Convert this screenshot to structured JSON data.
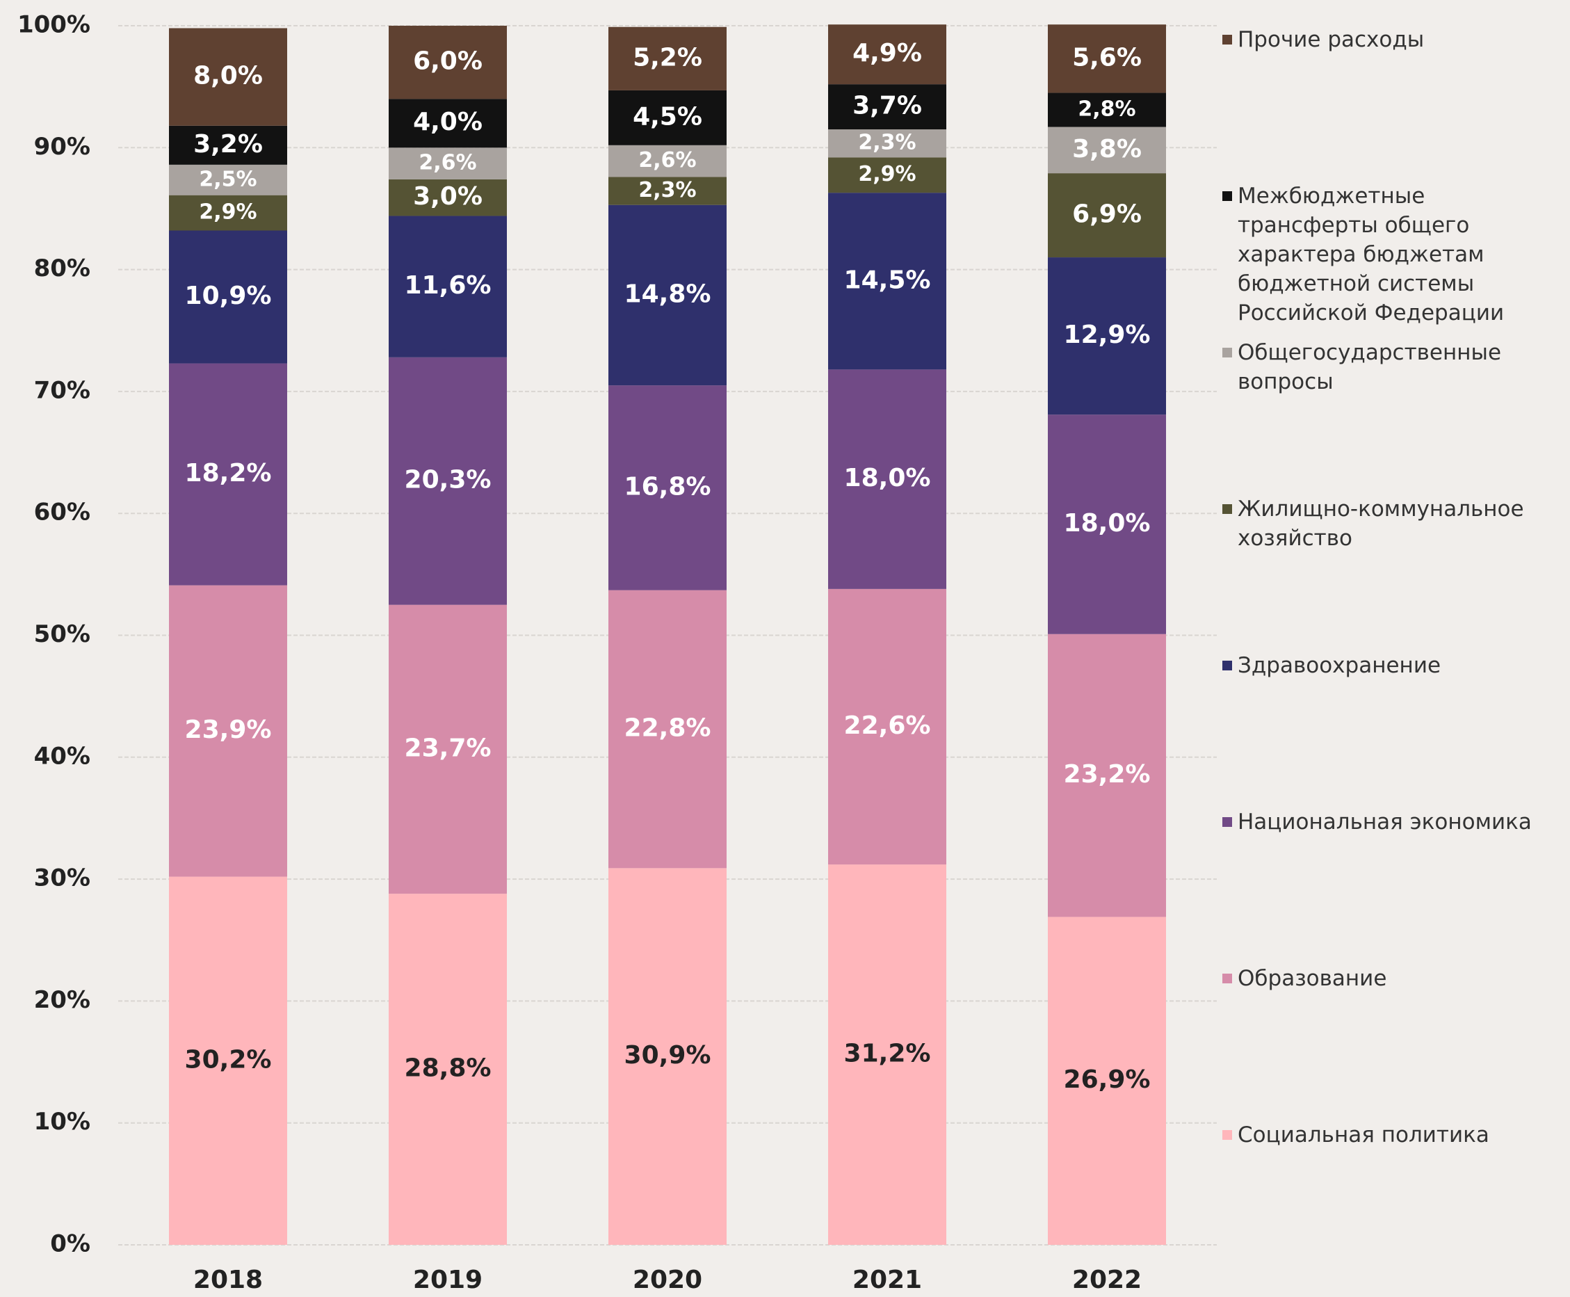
{
  "chart_data": {
    "type": "stacked_bar",
    "categories": [
      "2018",
      "2019",
      "2020",
      "2021",
      "2022"
    ],
    "ylim": [
      0,
      100
    ],
    "yticks": [
      {
        "value": 0,
        "label": "0%"
      },
      {
        "value": 10,
        "label": "10%"
      },
      {
        "value": 20,
        "label": "20%"
      },
      {
        "value": 30,
        "label": "30%"
      },
      {
        "value": 40,
        "label": "40%"
      },
      {
        "value": 50,
        "label": "50%"
      },
      {
        "value": 60,
        "label": "60%"
      },
      {
        "value": 70,
        "label": "70%"
      },
      {
        "value": 80,
        "label": "80%"
      },
      {
        "value": 90,
        "label": "90%"
      },
      {
        "value": 100,
        "label": "100%"
      }
    ],
    "grid": true,
    "legend": "right",
    "series": [
      {
        "name": "Социальная политика",
        "color": "#ffb6bb",
        "values": [
          30.2,
          28.8,
          30.9,
          31.2,
          26.9
        ],
        "value_labels": [
          "30,2%",
          "28,8%",
          "30,9%",
          "31,2%",
          "26,9%"
        ]
      },
      {
        "name": "Образование",
        "color": "#d68ca9",
        "values": [
          23.9,
          23.7,
          22.8,
          22.6,
          23.2
        ],
        "value_labels": [
          "23,9%",
          "23,7%",
          "22,8%",
          "22,6%",
          "23,2%"
        ]
      },
      {
        "name": "Национальная экономика",
        "color": "#714a86",
        "values": [
          18.2,
          20.3,
          16.8,
          18.0,
          18.0
        ],
        "value_labels": [
          "18,2%",
          "20,3%",
          "16,8%",
          "18,0%",
          "18,0%"
        ]
      },
      {
        "name": "Здравоохранение",
        "color": "#2f306c",
        "values": [
          10.9,
          11.6,
          14.8,
          14.5,
          12.9
        ],
        "value_labels": [
          "10,9%",
          "11,6%",
          "14,8%",
          "14,5%",
          "12,9%"
        ]
      },
      {
        "name": "Жилищно-коммунальное хозяйство",
        "color": "#555334",
        "values": [
          2.9,
          3.0,
          2.3,
          2.9,
          6.9
        ],
        "value_labels": [
          "2,9%",
          "3,0%",
          "2,3%",
          "2,9%",
          "6,9%"
        ]
      },
      {
        "name": "Общегосударственные вопросы",
        "color": "#a9a39f",
        "values": [
          2.5,
          2.6,
          2.6,
          2.3,
          3.8
        ],
        "value_labels": [
          "2,5%",
          "2,6%",
          "2,6%",
          "2,3%",
          "3,8%"
        ]
      },
      {
        "name": "Межбюджетные трансферты общего характера бюджетам бюджетной системы Российской Федерации",
        "color": "#121212",
        "values": [
          3.2,
          4.0,
          4.5,
          3.7,
          2.8
        ],
        "value_labels": [
          "3,2%",
          "4,0%",
          "4,5%",
          "3,7%",
          "2,8%"
        ]
      },
      {
        "name": "Прочие расходы",
        "color": "#5f4131",
        "values": [
          8.0,
          6.0,
          5.2,
          4.9,
          5.6
        ],
        "value_labels": [
          "8,0%",
          "6,0%",
          "5,2%",
          "4,9%",
          "5,6%"
        ]
      }
    ]
  }
}
